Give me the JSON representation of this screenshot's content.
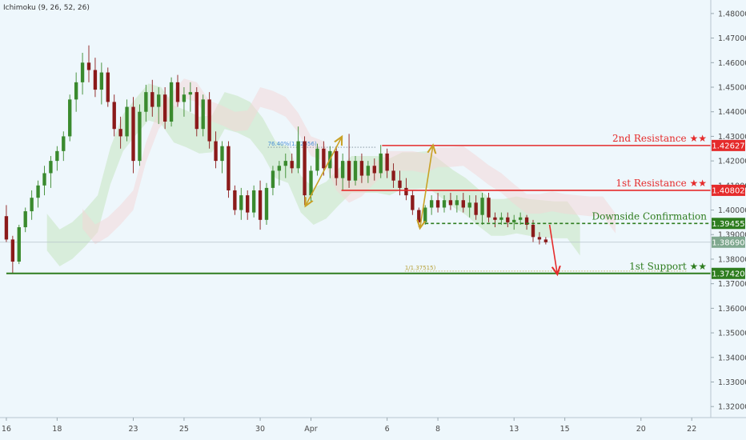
{
  "indicator_label": "Ichimoku (9, 26, 52, 26)",
  "colors": {
    "background": "#eef7fc",
    "candle_up": "#3a8a2e",
    "candle_down": "#8b1a1a",
    "resistance": "#e52b2b",
    "support": "#2e7d1f",
    "confirmation": "#2e7d1f",
    "arrow_gold": "#c9a227",
    "arrow_red": "#e52b2b",
    "current_price": "#7fa88f",
    "cloud_green": "#c7e6c0",
    "cloud_red": "#f4d6d6",
    "fib_text": "#4a8fd6",
    "fib_support_text": "#b8a23a"
  },
  "chart_data": {
    "type": "candlestick",
    "y_axis_ticks": [
      "1.48000",
      "1.47000",
      "1.46000",
      "1.45000",
      "1.44000",
      "1.43000",
      "1.42000",
      "1.41000",
      "1.40000",
      "1.39000",
      "1.38000",
      "1.37000",
      "1.36000",
      "1.35000",
      "1.34000",
      "1.33000",
      "1.32000"
    ],
    "y_range": [
      1.3155,
      1.4855
    ],
    "x_axis_ticks": [
      {
        "label": "16",
        "t": 0
      },
      {
        "label": "18",
        "t": 2
      },
      {
        "label": "23",
        "t": 5
      },
      {
        "label": "25",
        "t": 7
      },
      {
        "label": "30",
        "t": 10
      },
      {
        "label": "Apr",
        "t": 12
      },
      {
        "label": "6",
        "t": 15
      },
      {
        "label": "8",
        "t": 17
      },
      {
        "label": "13",
        "t": 20
      },
      {
        "label": "15",
        "t": 22
      },
      {
        "label": "20",
        "t": 25
      },
      {
        "label": "22",
        "t": 27
      }
    ],
    "x_range": [
      -0.25,
      27.75
    ],
    "levels": [
      {
        "name": "2nd Resistance ★★",
        "price": 1.42627,
        "tag": "1.42627",
        "kind": "resistance",
        "t_start": 14.8
      },
      {
        "name": "1st Resistance ★★",
        "price": 1.40802,
        "tag": "1.40802",
        "kind": "resistance",
        "t_start": 13.2
      },
      {
        "name": "Downside Confirmation",
        "price": 1.39455,
        "tag": "1.39455",
        "kind": "confirmation",
        "t_start": 16.5
      },
      {
        "name": "1st Support ★★",
        "price": 1.3742,
        "tag": "1.37420",
        "kind": "support",
        "t_start": 0
      }
    ],
    "current_price": {
      "price": 1.3869,
      "tag": "1.38690"
    },
    "fib_labels": [
      {
        "text": "76.40%(1.42556)",
        "price": 1.42556,
        "t": 10.3,
        "t_end": 14.6
      },
      {
        "text": "1/1.37515)",
        "price": 1.37515,
        "t": 15.7,
        "t_end": 26.8
      }
    ],
    "candles": [
      {
        "t": 0.0,
        "o": 1.3975,
        "h": 1.402,
        "l": 1.387,
        "c": 1.388
      },
      {
        "t": 0.25,
        "o": 1.388,
        "h": 1.3895,
        "l": 1.3742,
        "c": 1.379
      },
      {
        "t": 0.5,
        "o": 1.379,
        "h": 1.394,
        "l": 1.378,
        "c": 1.393
      },
      {
        "t": 0.75,
        "o": 1.393,
        "h": 1.401,
        "l": 1.391,
        "c": 1.3995
      },
      {
        "t": 1.0,
        "o": 1.3995,
        "h": 1.408,
        "l": 1.396,
        "c": 1.405
      },
      {
        "t": 1.25,
        "o": 1.405,
        "h": 1.412,
        "l": 1.401,
        "c": 1.41
      },
      {
        "t": 1.5,
        "o": 1.41,
        "h": 1.418,
        "l": 1.406,
        "c": 1.415
      },
      {
        "t": 1.75,
        "o": 1.415,
        "h": 1.422,
        "l": 1.409,
        "c": 1.42
      },
      {
        "t": 2.0,
        "o": 1.42,
        "h": 1.426,
        "l": 1.416,
        "c": 1.424
      },
      {
        "t": 2.25,
        "o": 1.424,
        "h": 1.432,
        "l": 1.42,
        "c": 1.43
      },
      {
        "t": 2.5,
        "o": 1.43,
        "h": 1.447,
        "l": 1.428,
        "c": 1.445
      },
      {
        "t": 2.75,
        "o": 1.445,
        "h": 1.456,
        "l": 1.44,
        "c": 1.452
      },
      {
        "t": 3.0,
        "o": 1.452,
        "h": 1.464,
        "l": 1.447,
        "c": 1.46
      },
      {
        "t": 3.25,
        "o": 1.46,
        "h": 1.467,
        "l": 1.452,
        "c": 1.457
      },
      {
        "t": 3.5,
        "o": 1.457,
        "h": 1.462,
        "l": 1.446,
        "c": 1.449
      },
      {
        "t": 3.75,
        "o": 1.449,
        "h": 1.46,
        "l": 1.443,
        "c": 1.456
      },
      {
        "t": 4.0,
        "o": 1.456,
        "h": 1.458,
        "l": 1.442,
        "c": 1.444
      },
      {
        "t": 4.25,
        "o": 1.444,
        "h": 1.447,
        "l": 1.43,
        "c": 1.433
      },
      {
        "t": 4.5,
        "o": 1.433,
        "h": 1.438,
        "l": 1.425,
        "c": 1.43
      },
      {
        "t": 4.75,
        "o": 1.43,
        "h": 1.445,
        "l": 1.428,
        "c": 1.442
      },
      {
        "t": 5.0,
        "o": 1.442,
        "h": 1.446,
        "l": 1.415,
        "c": 1.42
      },
      {
        "t": 5.25,
        "o": 1.42,
        "h": 1.443,
        "l": 1.418,
        "c": 1.44
      },
      {
        "t": 5.5,
        "o": 1.44,
        "h": 1.451,
        "l": 1.436,
        "c": 1.448
      },
      {
        "t": 5.75,
        "o": 1.448,
        "h": 1.453,
        "l": 1.438,
        "c": 1.442
      },
      {
        "t": 6.0,
        "o": 1.442,
        "h": 1.45,
        "l": 1.435,
        "c": 1.447
      },
      {
        "t": 6.25,
        "o": 1.447,
        "h": 1.45,
        "l": 1.433,
        "c": 1.436
      },
      {
        "t": 6.5,
        "o": 1.436,
        "h": 1.454,
        "l": 1.434,
        "c": 1.452
      },
      {
        "t": 6.75,
        "o": 1.452,
        "h": 1.455,
        "l": 1.442,
        "c": 1.444
      },
      {
        "t": 7.0,
        "o": 1.444,
        "h": 1.45,
        "l": 1.438,
        "c": 1.447
      },
      {
        "t": 7.25,
        "o": 1.447,
        "h": 1.452,
        "l": 1.44,
        "c": 1.448
      },
      {
        "t": 7.5,
        "o": 1.448,
        "h": 1.45,
        "l": 1.43,
        "c": 1.433
      },
      {
        "t": 7.75,
        "o": 1.433,
        "h": 1.447,
        "l": 1.43,
        "c": 1.445
      },
      {
        "t": 8.0,
        "o": 1.445,
        "h": 1.448,
        "l": 1.425,
        "c": 1.428
      },
      {
        "t": 8.25,
        "o": 1.428,
        "h": 1.432,
        "l": 1.417,
        "c": 1.42
      },
      {
        "t": 8.5,
        "o": 1.42,
        "h": 1.428,
        "l": 1.415,
        "c": 1.426
      },
      {
        "t": 8.75,
        "o": 1.426,
        "h": 1.428,
        "l": 1.405,
        "c": 1.408
      },
      {
        "t": 9.0,
        "o": 1.408,
        "h": 1.41,
        "l": 1.398,
        "c": 1.4
      },
      {
        "t": 9.25,
        "o": 1.4,
        "h": 1.409,
        "l": 1.396,
        "c": 1.406
      },
      {
        "t": 9.5,
        "o": 1.406,
        "h": 1.408,
        "l": 1.396,
        "c": 1.399
      },
      {
        "t": 9.75,
        "o": 1.399,
        "h": 1.41,
        "l": 1.397,
        "c": 1.408
      },
      {
        "t": 10.0,
        "o": 1.408,
        "h": 1.412,
        "l": 1.392,
        "c": 1.396
      },
      {
        "t": 10.25,
        "o": 1.396,
        "h": 1.411,
        "l": 1.394,
        "c": 1.409
      },
      {
        "t": 10.5,
        "o": 1.409,
        "h": 1.418,
        "l": 1.406,
        "c": 1.416
      },
      {
        "t": 10.75,
        "o": 1.416,
        "h": 1.42,
        "l": 1.41,
        "c": 1.418
      },
      {
        "t": 11.0,
        "o": 1.418,
        "h": 1.423,
        "l": 1.413,
        "c": 1.42
      },
      {
        "t": 11.25,
        "o": 1.42,
        "h": 1.423,
        "l": 1.415,
        "c": 1.417
      },
      {
        "t": 11.5,
        "o": 1.417,
        "h": 1.434,
        "l": 1.415,
        "c": 1.428
      },
      {
        "t": 11.75,
        "o": 1.428,
        "h": 1.43,
        "l": 1.402,
        "c": 1.406
      },
      {
        "t": 12.0,
        "o": 1.406,
        "h": 1.418,
        "l": 1.403,
        "c": 1.416
      },
      {
        "t": 12.25,
        "o": 1.416,
        "h": 1.427,
        "l": 1.414,
        "c": 1.425
      },
      {
        "t": 12.5,
        "o": 1.425,
        "h": 1.428,
        "l": 1.414,
        "c": 1.417
      },
      {
        "t": 12.75,
        "o": 1.417,
        "h": 1.426,
        "l": 1.413,
        "c": 1.424
      },
      {
        "t": 13.0,
        "o": 1.424,
        "h": 1.426,
        "l": 1.41,
        "c": 1.413
      },
      {
        "t": 13.25,
        "o": 1.413,
        "h": 1.423,
        "l": 1.408,
        "c": 1.42
      },
      {
        "t": 13.5,
        "o": 1.42,
        "h": 1.431,
        "l": 1.409,
        "c": 1.412
      },
      {
        "t": 13.75,
        "o": 1.412,
        "h": 1.422,
        "l": 1.41,
        "c": 1.42
      },
      {
        "t": 14.0,
        "o": 1.42,
        "h": 1.423,
        "l": 1.411,
        "c": 1.414
      },
      {
        "t": 14.25,
        "o": 1.414,
        "h": 1.42,
        "l": 1.411,
        "c": 1.418
      },
      {
        "t": 14.5,
        "o": 1.418,
        "h": 1.421,
        "l": 1.412,
        "c": 1.415
      },
      {
        "t": 14.75,
        "o": 1.415,
        "h": 1.4265,
        "l": 1.413,
        "c": 1.423
      },
      {
        "t": 15.0,
        "o": 1.423,
        "h": 1.425,
        "l": 1.413,
        "c": 1.416
      },
      {
        "t": 15.25,
        "o": 1.416,
        "h": 1.419,
        "l": 1.409,
        "c": 1.412
      },
      {
        "t": 15.5,
        "o": 1.412,
        "h": 1.416,
        "l": 1.406,
        "c": 1.409
      },
      {
        "t": 15.75,
        "o": 1.409,
        "h": 1.413,
        "l": 1.404,
        "c": 1.406
      },
      {
        "t": 16.0,
        "o": 1.406,
        "h": 1.408,
        "l": 1.398,
        "c": 1.4
      },
      {
        "t": 16.25,
        "o": 1.4,
        "h": 1.401,
        "l": 1.393,
        "c": 1.395
      },
      {
        "t": 16.5,
        "o": 1.395,
        "h": 1.402,
        "l": 1.394,
        "c": 1.401
      },
      {
        "t": 16.75,
        "o": 1.401,
        "h": 1.406,
        "l": 1.398,
        "c": 1.404
      },
      {
        "t": 17.0,
        "o": 1.404,
        "h": 1.407,
        "l": 1.399,
        "c": 1.401
      },
      {
        "t": 17.25,
        "o": 1.401,
        "h": 1.406,
        "l": 1.399,
        "c": 1.404
      },
      {
        "t": 17.5,
        "o": 1.404,
        "h": 1.407,
        "l": 1.4,
        "c": 1.402
      },
      {
        "t": 17.75,
        "o": 1.402,
        "h": 1.406,
        "l": 1.399,
        "c": 1.404
      },
      {
        "t": 18.0,
        "o": 1.404,
        "h": 1.407,
        "l": 1.399,
        "c": 1.401
      },
      {
        "t": 18.25,
        "o": 1.401,
        "h": 1.406,
        "l": 1.397,
        "c": 1.403
      },
      {
        "t": 18.5,
        "o": 1.403,
        "h": 1.406,
        "l": 1.396,
        "c": 1.398
      },
      {
        "t": 18.75,
        "o": 1.398,
        "h": 1.407,
        "l": 1.394,
        "c": 1.405
      },
      {
        "t": 19.0,
        "o": 1.405,
        "h": 1.407,
        "l": 1.395,
        "c": 1.397
      },
      {
        "t": 19.25,
        "o": 1.397,
        "h": 1.399,
        "l": 1.393,
        "c": 1.396
      },
      {
        "t": 19.5,
        "o": 1.396,
        "h": 1.399,
        "l": 1.394,
        "c": 1.397
      },
      {
        "t": 19.75,
        "o": 1.397,
        "h": 1.399,
        "l": 1.393,
        "c": 1.395
      },
      {
        "t": 20.0,
        "o": 1.395,
        "h": 1.398,
        "l": 1.392,
        "c": 1.396
      },
      {
        "t": 20.25,
        "o": 1.396,
        "h": 1.399,
        "l": 1.394,
        "c": 1.397
      },
      {
        "t": 20.5,
        "o": 1.397,
        "h": 1.398,
        "l": 1.392,
        "c": 1.394
      },
      {
        "t": 20.75,
        "o": 1.394,
        "h": 1.396,
        "l": 1.387,
        "c": 1.389
      },
      {
        "t": 21.0,
        "o": 1.389,
        "h": 1.391,
        "l": 1.386,
        "c": 1.388
      },
      {
        "t": 21.25,
        "o": 1.388,
        "h": 1.389,
        "l": 1.386,
        "c": 1.3869
      }
    ],
    "annotations": [
      {
        "kind": "double-arrow",
        "color": "gold",
        "from": {
          "t": 11.8,
          "price": 1.402
        },
        "to": {
          "t": 13.2,
          "price": 1.4295
        }
      },
      {
        "kind": "double-arrow",
        "color": "gold",
        "from": {
          "t": 16.3,
          "price": 1.393
        },
        "to": {
          "t": 16.8,
          "price": 1.426
        }
      },
      {
        "kind": "arrow",
        "color": "red",
        "from": {
          "t": 21.4,
          "price": 1.394
        },
        "to": {
          "t": 21.7,
          "price": 1.3742
        }
      }
    ]
  }
}
